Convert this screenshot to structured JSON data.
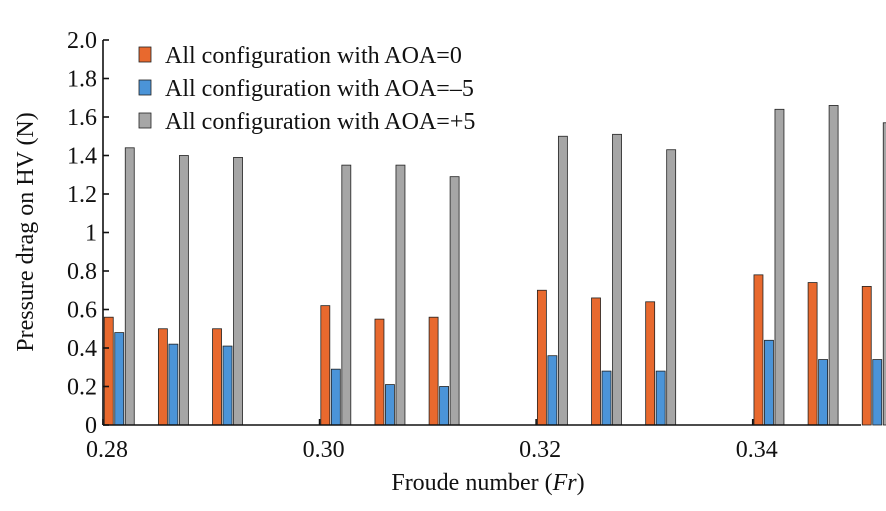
{
  "chart_data": {
    "type": "bar",
    "xlabel_prefix": "Froude number (",
    "xlabel_italic": "Fr",
    "xlabel_suffix": ")",
    "ylabel": "Pressure drag on HV (N)",
    "ylim": [
      0,
      2.0
    ],
    "yticks": [
      0,
      0.2,
      0.4,
      0.6,
      0.8,
      1,
      1.2,
      1.4,
      1.6,
      1.8,
      2.0
    ],
    "ytick_labels": [
      "0",
      "0.2",
      "0.4",
      "0.6",
      "0.8",
      "1",
      "1.2",
      "1.4",
      "1.6",
      "1.8",
      "2.0"
    ],
    "xlim": [
      0.28,
      0.35
    ],
    "xticks": [
      0.28,
      0.3,
      0.32,
      0.34
    ],
    "xtick_labels": [
      "0.28",
      "0.30",
      "0.32",
      "0.34"
    ],
    "group_positions": [
      0.2815,
      0.2865,
      0.2915,
      0.3015,
      0.3065,
      0.3115,
      0.3215,
      0.3265,
      0.3315,
      0.3415,
      0.3465,
      0.3515
    ],
    "legend_position": "top-left",
    "series": [
      {
        "name": "All configuration with AOA=0",
        "color": "#E8692E",
        "values": [
          0.56,
          0.5,
          0.5,
          0.62,
          0.55,
          0.56,
          0.7,
          0.66,
          0.64,
          0.78,
          0.74,
          0.72
        ]
      },
      {
        "name": "All configuration with AOA=–5",
        "color": "#4B94D8",
        "values": [
          0.48,
          0.42,
          0.41,
          0.29,
          0.21,
          0.2,
          0.36,
          0.28,
          0.28,
          0.44,
          0.34,
          0.34
        ]
      },
      {
        "name": "All configuration with AOA=+5",
        "color": "#A6A6A6",
        "values": [
          1.44,
          1.4,
          1.39,
          1.35,
          1.35,
          1.29,
          1.5,
          1.51,
          1.43,
          1.64,
          1.66,
          1.57
        ]
      }
    ]
  }
}
